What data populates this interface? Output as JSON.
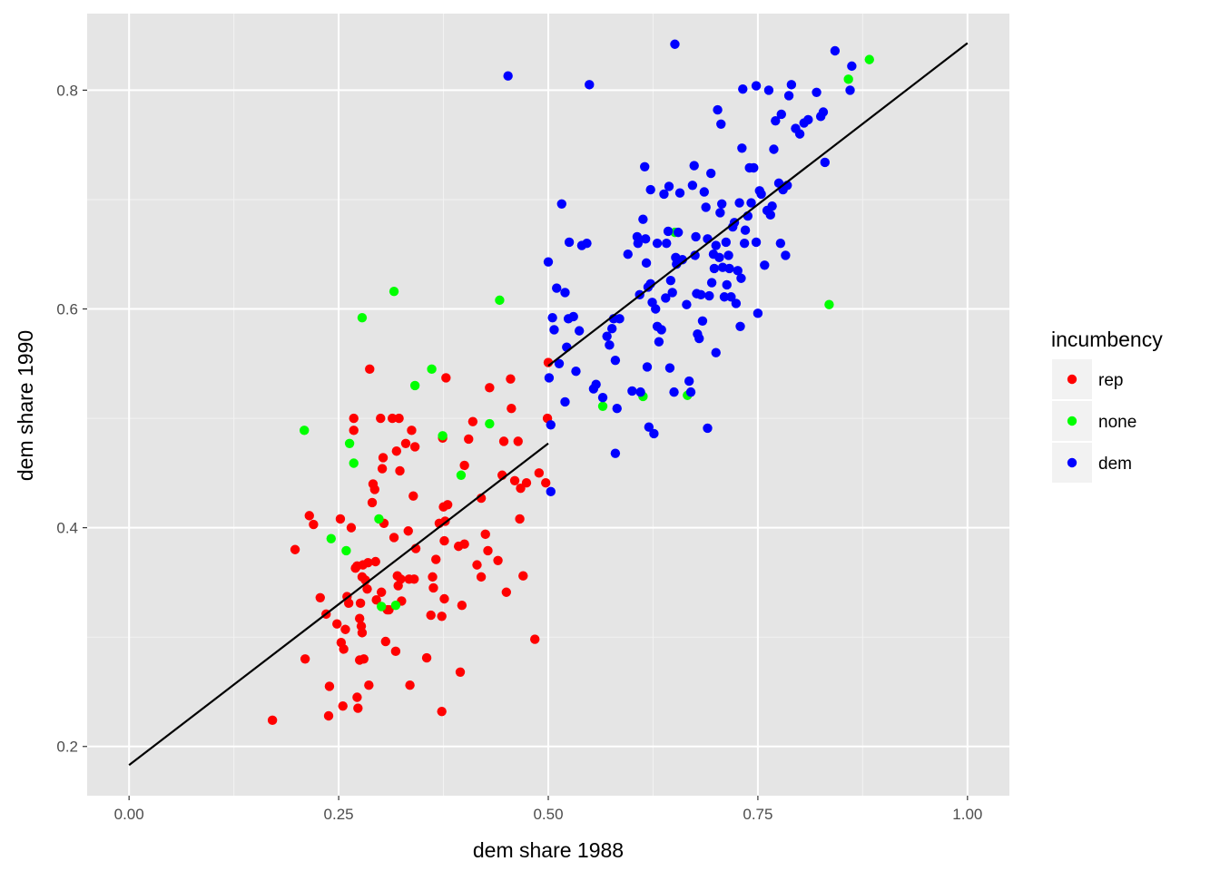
{
  "chart_data": {
    "type": "scatter",
    "xlabel": "dem share 1988",
    "ylabel": "dem share 1990",
    "xlim": [
      -0.05,
      1.05
    ],
    "ylim": [
      0.155,
      0.87
    ],
    "x_ticks": [
      0.0,
      0.25,
      0.5,
      0.75,
      1.0
    ],
    "x_tick_labels": [
      "0.00",
      "0.25",
      "0.50",
      "0.75",
      "1.00"
    ],
    "y_ticks": [
      0.2,
      0.4,
      0.6,
      0.8
    ],
    "y_tick_labels": [
      "0.2",
      "0.4",
      "0.6",
      "0.8"
    ],
    "grid": true,
    "legend": {
      "title": "incumbency",
      "position": "right",
      "items": [
        {
          "label": "rep",
          "color": "#ff0000"
        },
        {
          "label": "none",
          "color": "#00ff00"
        },
        {
          "label": "dem",
          "color": "#0000ff"
        }
      ]
    },
    "fit_lines": [
      {
        "x": [
          0.0,
          0.5
        ],
        "y": [
          0.183,
          0.477
        ]
      },
      {
        "x": [
          0.5,
          1.0
        ],
        "y": [
          0.548,
          0.843
        ]
      }
    ],
    "series": [
      {
        "name": "rep",
        "color": "#ff0000",
        "points": [
          [
            0.171,
            0.224
          ],
          [
            0.198,
            0.38
          ],
          [
            0.21,
            0.28
          ],
          [
            0.215,
            0.411
          ],
          [
            0.22,
            0.403
          ],
          [
            0.228,
            0.336
          ],
          [
            0.235,
            0.321
          ],
          [
            0.238,
            0.228
          ],
          [
            0.239,
            0.255
          ],
          [
            0.248,
            0.312
          ],
          [
            0.252,
            0.408
          ],
          [
            0.253,
            0.295
          ],
          [
            0.255,
            0.237
          ],
          [
            0.256,
            0.289
          ],
          [
            0.258,
            0.307
          ],
          [
            0.26,
            0.337
          ],
          [
            0.262,
            0.331
          ],
          [
            0.265,
            0.4
          ],
          [
            0.268,
            0.5
          ],
          [
            0.268,
            0.489
          ],
          [
            0.27,
            0.363
          ],
          [
            0.272,
            0.365
          ],
          [
            0.272,
            0.245
          ],
          [
            0.273,
            0.235
          ],
          [
            0.275,
            0.279
          ],
          [
            0.275,
            0.317
          ],
          [
            0.276,
            0.331
          ],
          [
            0.277,
            0.31
          ],
          [
            0.278,
            0.304
          ],
          [
            0.278,
            0.355
          ],
          [
            0.279,
            0.366
          ],
          [
            0.28,
            0.28
          ],
          [
            0.282,
            0.352
          ],
          [
            0.284,
            0.344
          ],
          [
            0.285,
            0.368
          ],
          [
            0.286,
            0.256
          ],
          [
            0.287,
            0.545
          ],
          [
            0.29,
            0.423
          ],
          [
            0.291,
            0.44
          ],
          [
            0.293,
            0.435
          ],
          [
            0.294,
            0.369
          ],
          [
            0.295,
            0.334
          ],
          [
            0.3,
            0.5
          ],
          [
            0.301,
            0.341
          ],
          [
            0.302,
            0.454
          ],
          [
            0.303,
            0.464
          ],
          [
            0.304,
            0.404
          ],
          [
            0.306,
            0.296
          ],
          [
            0.308,
            0.325
          ],
          [
            0.31,
            0.325
          ],
          [
            0.314,
            0.5
          ],
          [
            0.316,
            0.391
          ],
          [
            0.318,
            0.287
          ],
          [
            0.319,
            0.47
          ],
          [
            0.32,
            0.356
          ],
          [
            0.321,
            0.347
          ],
          [
            0.322,
            0.5
          ],
          [
            0.323,
            0.452
          ],
          [
            0.324,
            0.353
          ],
          [
            0.325,
            0.333
          ],
          [
            0.33,
            0.477
          ],
          [
            0.333,
            0.397
          ],
          [
            0.334,
            0.353
          ],
          [
            0.335,
            0.256
          ],
          [
            0.337,
            0.489
          ],
          [
            0.339,
            0.429
          ],
          [
            0.34,
            0.353
          ],
          [
            0.341,
            0.474
          ],
          [
            0.342,
            0.381
          ],
          [
            0.355,
            0.281
          ],
          [
            0.36,
            0.32
          ],
          [
            0.362,
            0.355
          ],
          [
            0.363,
            0.345
          ],
          [
            0.366,
            0.371
          ],
          [
            0.37,
            0.404
          ],
          [
            0.373,
            0.232
          ],
          [
            0.373,
            0.319
          ],
          [
            0.374,
            0.482
          ],
          [
            0.375,
            0.419
          ],
          [
            0.376,
            0.388
          ],
          [
            0.376,
            0.335
          ],
          [
            0.377,
            0.406
          ],
          [
            0.378,
            0.537
          ],
          [
            0.38,
            0.421
          ],
          [
            0.393,
            0.383
          ],
          [
            0.395,
            0.268
          ],
          [
            0.397,
            0.329
          ],
          [
            0.4,
            0.385
          ],
          [
            0.4,
            0.457
          ],
          [
            0.405,
            0.481
          ],
          [
            0.41,
            0.497
          ],
          [
            0.415,
            0.366
          ],
          [
            0.42,
            0.427
          ],
          [
            0.42,
            0.355
          ],
          [
            0.425,
            0.394
          ],
          [
            0.428,
            0.379
          ],
          [
            0.43,
            0.528
          ],
          [
            0.44,
            0.37
          ],
          [
            0.445,
            0.448
          ],
          [
            0.447,
            0.479
          ],
          [
            0.45,
            0.341
          ],
          [
            0.455,
            0.536
          ],
          [
            0.456,
            0.509
          ],
          [
            0.46,
            0.443
          ],
          [
            0.464,
            0.479
          ],
          [
            0.466,
            0.408
          ],
          [
            0.467,
            0.436
          ],
          [
            0.47,
            0.356
          ],
          [
            0.474,
            0.441
          ],
          [
            0.484,
            0.298
          ],
          [
            0.489,
            0.45
          ],
          [
            0.497,
            0.441
          ],
          [
            0.499,
            0.5
          ],
          [
            0.5,
            0.551
          ]
        ]
      },
      {
        "name": "none",
        "color": "#00ff00",
        "points": [
          [
            0.209,
            0.489
          ],
          [
            0.241,
            0.39
          ],
          [
            0.259,
            0.379
          ],
          [
            0.263,
            0.477
          ],
          [
            0.268,
            0.459
          ],
          [
            0.278,
            0.592
          ],
          [
            0.298,
            0.408
          ],
          [
            0.301,
            0.328
          ],
          [
            0.316,
            0.616
          ],
          [
            0.318,
            0.329
          ],
          [
            0.341,
            0.53
          ],
          [
            0.361,
            0.545
          ],
          [
            0.374,
            0.484
          ],
          [
            0.396,
            0.448
          ],
          [
            0.43,
            0.495
          ],
          [
            0.442,
            0.608
          ],
          [
            0.565,
            0.511
          ],
          [
            0.613,
            0.52
          ],
          [
            0.651,
            0.67
          ],
          [
            0.666,
            0.521
          ],
          [
            0.835,
            0.604
          ],
          [
            0.858,
            0.81
          ],
          [
            0.883,
            0.828
          ]
        ]
      },
      {
        "name": "dem",
        "color": "#0000ff",
        "points": [
          [
            0.452,
            0.813
          ],
          [
            0.5,
            0.643
          ],
          [
            0.501,
            0.537
          ],
          [
            0.503,
            0.433
          ],
          [
            0.503,
            0.494
          ],
          [
            0.505,
            0.592
          ],
          [
            0.507,
            0.581
          ],
          [
            0.51,
            0.619
          ],
          [
            0.513,
            0.55
          ],
          [
            0.516,
            0.696
          ],
          [
            0.52,
            0.515
          ],
          [
            0.52,
            0.615
          ],
          [
            0.522,
            0.565
          ],
          [
            0.524,
            0.591
          ],
          [
            0.525,
            0.661
          ],
          [
            0.53,
            0.593
          ],
          [
            0.533,
            0.543
          ],
          [
            0.537,
            0.58
          ],
          [
            0.54,
            0.658
          ],
          [
            0.546,
            0.66
          ],
          [
            0.549,
            0.805
          ],
          [
            0.554,
            0.527
          ],
          [
            0.557,
            0.531
          ],
          [
            0.565,
            0.519
          ],
          [
            0.57,
            0.575
          ],
          [
            0.573,
            0.567
          ],
          [
            0.576,
            0.582
          ],
          [
            0.578,
            0.591
          ],
          [
            0.58,
            0.553
          ],
          [
            0.58,
            0.468
          ],
          [
            0.582,
            0.509
          ],
          [
            0.585,
            0.591
          ],
          [
            0.595,
            0.65
          ],
          [
            0.6,
            0.525
          ],
          [
            0.606,
            0.666
          ],
          [
            0.607,
            0.66
          ],
          [
            0.609,
            0.613
          ],
          [
            0.61,
            0.524
          ],
          [
            0.613,
            0.682
          ],
          [
            0.615,
            0.73
          ],
          [
            0.616,
            0.664
          ],
          [
            0.617,
            0.642
          ],
          [
            0.618,
            0.547
          ],
          [
            0.619,
            0.62
          ],
          [
            0.62,
            0.492
          ],
          [
            0.622,
            0.709
          ],
          [
            0.622,
            0.623
          ],
          [
            0.624,
            0.606
          ],
          [
            0.626,
            0.486
          ],
          [
            0.628,
            0.6
          ],
          [
            0.63,
            0.584
          ],
          [
            0.63,
            0.66
          ],
          [
            0.632,
            0.57
          ],
          [
            0.635,
            0.581
          ],
          [
            0.638,
            0.705
          ],
          [
            0.64,
            0.61
          ],
          [
            0.641,
            0.66
          ],
          [
            0.643,
            0.671
          ],
          [
            0.644,
            0.712
          ],
          [
            0.645,
            0.546
          ],
          [
            0.646,
            0.626
          ],
          [
            0.648,
            0.615
          ],
          [
            0.65,
            0.524
          ],
          [
            0.651,
            0.842
          ],
          [
            0.652,
            0.647
          ],
          [
            0.653,
            0.641
          ],
          [
            0.655,
            0.67
          ],
          [
            0.657,
            0.706
          ],
          [
            0.66,
            0.645
          ],
          [
            0.665,
            0.604
          ],
          [
            0.668,
            0.534
          ],
          [
            0.67,
            0.524
          ],
          [
            0.672,
            0.713
          ],
          [
            0.674,
            0.731
          ],
          [
            0.675,
            0.649
          ],
          [
            0.676,
            0.666
          ],
          [
            0.677,
            0.614
          ],
          [
            0.678,
            0.577
          ],
          [
            0.68,
            0.573
          ],
          [
            0.682,
            0.613
          ],
          [
            0.684,
            0.589
          ],
          [
            0.686,
            0.707
          ],
          [
            0.688,
            0.693
          ],
          [
            0.69,
            0.491
          ],
          [
            0.69,
            0.664
          ],
          [
            0.692,
            0.612
          ],
          [
            0.694,
            0.724
          ],
          [
            0.695,
            0.624
          ],
          [
            0.697,
            0.65
          ],
          [
            0.698,
            0.637
          ],
          [
            0.7,
            0.658
          ],
          [
            0.7,
            0.56
          ],
          [
            0.702,
            0.782
          ],
          [
            0.704,
            0.647
          ],
          [
            0.705,
            0.688
          ],
          [
            0.706,
            0.769
          ],
          [
            0.707,
            0.696
          ],
          [
            0.708,
            0.638
          ],
          [
            0.71,
            0.611
          ],
          [
            0.712,
            0.661
          ],
          [
            0.713,
            0.622
          ],
          [
            0.715,
            0.649
          ],
          [
            0.716,
            0.637
          ],
          [
            0.718,
            0.611
          ],
          [
            0.72,
            0.675
          ],
          [
            0.722,
            0.679
          ],
          [
            0.724,
            0.605
          ],
          [
            0.726,
            0.635
          ],
          [
            0.728,
            0.697
          ],
          [
            0.729,
            0.584
          ],
          [
            0.73,
            0.628
          ],
          [
            0.731,
            0.747
          ],
          [
            0.732,
            0.801
          ],
          [
            0.734,
            0.66
          ],
          [
            0.735,
            0.672
          ],
          [
            0.738,
            0.685
          ],
          [
            0.74,
            0.729
          ],
          [
            0.742,
            0.697
          ],
          [
            0.745,
            0.729
          ],
          [
            0.748,
            0.661
          ],
          [
            0.748,
            0.804
          ],
          [
            0.75,
            0.596
          ],
          [
            0.752,
            0.708
          ],
          [
            0.754,
            0.705
          ],
          [
            0.758,
            0.64
          ],
          [
            0.761,
            0.69
          ],
          [
            0.763,
            0.8
          ],
          [
            0.765,
            0.686
          ],
          [
            0.767,
            0.694
          ],
          [
            0.769,
            0.746
          ],
          [
            0.771,
            0.772
          ],
          [
            0.775,
            0.715
          ],
          [
            0.777,
            0.66
          ],
          [
            0.778,
            0.778
          ],
          [
            0.78,
            0.709
          ],
          [
            0.783,
            0.649
          ],
          [
            0.785,
            0.713
          ],
          [
            0.787,
            0.795
          ],
          [
            0.79,
            0.805
          ],
          [
            0.795,
            0.765
          ],
          [
            0.8,
            0.76
          ],
          [
            0.805,
            0.77
          ],
          [
            0.81,
            0.773
          ],
          [
            0.82,
            0.798
          ],
          [
            0.825,
            0.776
          ],
          [
            0.828,
            0.78
          ],
          [
            0.83,
            0.734
          ],
          [
            0.842,
            0.836
          ],
          [
            0.86,
            0.8
          ],
          [
            0.862,
            0.822
          ]
        ]
      }
    ]
  }
}
